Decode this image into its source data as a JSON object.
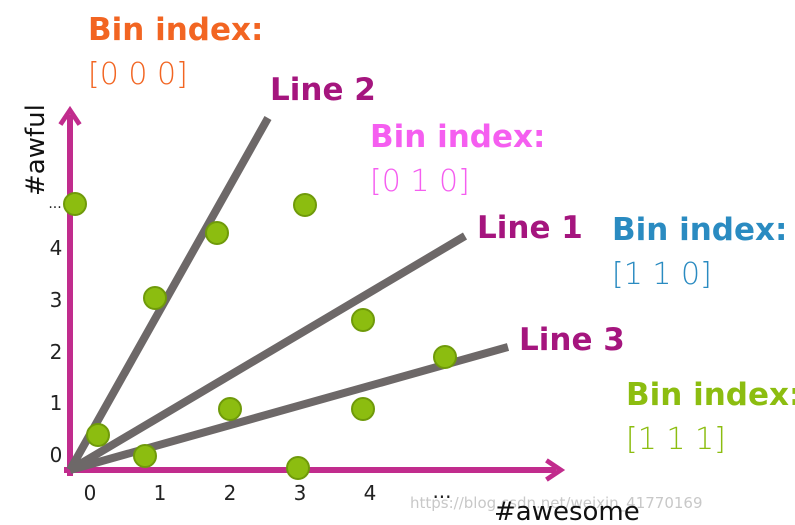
{
  "bins": [
    {
      "title": "Bin index:",
      "value": "[0 0 0]"
    },
    {
      "title": "Bin index:",
      "value": "[0 1 0]"
    },
    {
      "title": "Bin index:",
      "value": "[1 1 0]"
    },
    {
      "title": "Bin index:",
      "value": "[1 1 1]"
    }
  ],
  "lines": [
    "Line 2",
    "Line 1",
    "Line 3"
  ],
  "axes": {
    "x_label": "#awesome",
    "y_label": "#awful",
    "x_ticks": [
      "0",
      "1",
      "2",
      "3",
      "4",
      "..."
    ],
    "y_ticks": [
      "0",
      "1",
      "2",
      "3",
      "4",
      "..."
    ]
  },
  "watermark": "https://blog.csdn.net/weixin_41770169"
}
